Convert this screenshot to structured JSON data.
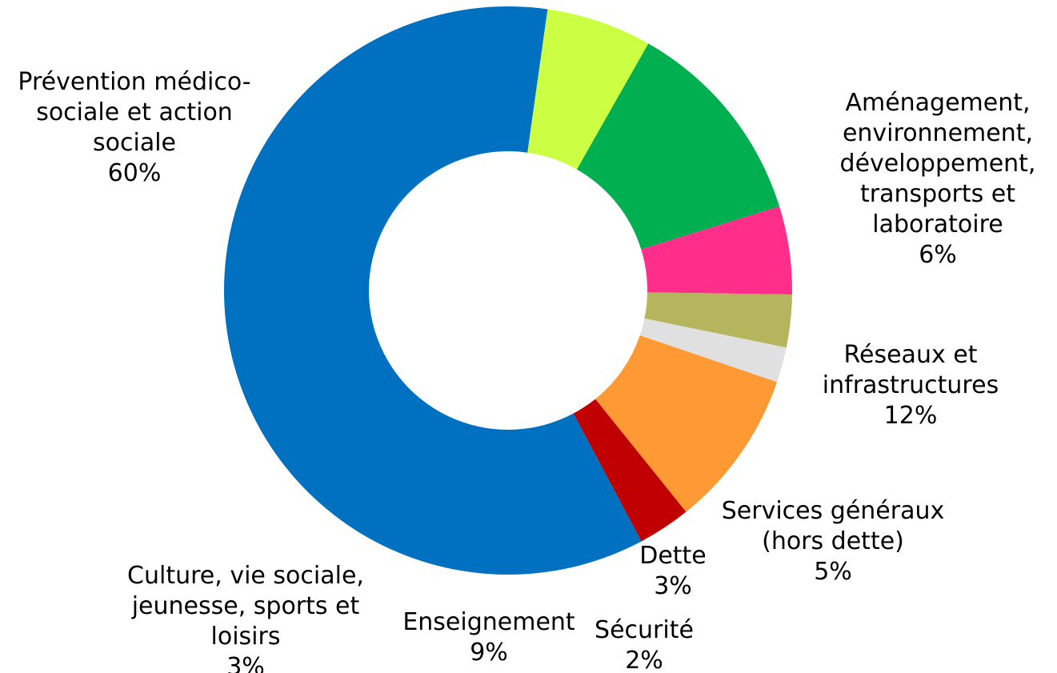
{
  "chart_data": {
    "type": "pie",
    "variant": "donut",
    "title": "",
    "legend": "none",
    "direction": "clockwise",
    "slices": [
      {
        "label": [
          "Prévention médico-",
          "sociale et action",
          "sociale"
        ],
        "value": 60,
        "value_label": "60%",
        "color": "#0070C0"
      },
      {
        "label": [
          "Aménagement,",
          "environnement,",
          "développement,",
          "transports et",
          "laboratoire"
        ],
        "value": 6,
        "value_label": "6%",
        "color": "#CCFF44"
      },
      {
        "label": [
          "Réseaux et",
          "infrastructures"
        ],
        "value": 12,
        "value_label": "12%",
        "color": "#00B050"
      },
      {
        "label": [
          "Services généraux",
          "(hors dette)"
        ],
        "value": 5,
        "value_label": "5%",
        "color": "#FF2E8A"
      },
      {
        "label": [
          "Dette"
        ],
        "value": 3,
        "value_label": "3%",
        "color": "#B5B55E"
      },
      {
        "label": [
          "Sécurité"
        ],
        "value": 2,
        "value_label": "2%",
        "color": "#E0E0E0"
      },
      {
        "label": [
          "Enseignement"
        ],
        "value": 9,
        "value_label": "9%",
        "color": "#FF9933"
      },
      {
        "label": [
          "Culture, vie sociale,",
          "jeunesse, sports et",
          "loisirs"
        ],
        "value": 3,
        "value_label": "3%",
        "color": "#C00000"
      }
    ]
  }
}
